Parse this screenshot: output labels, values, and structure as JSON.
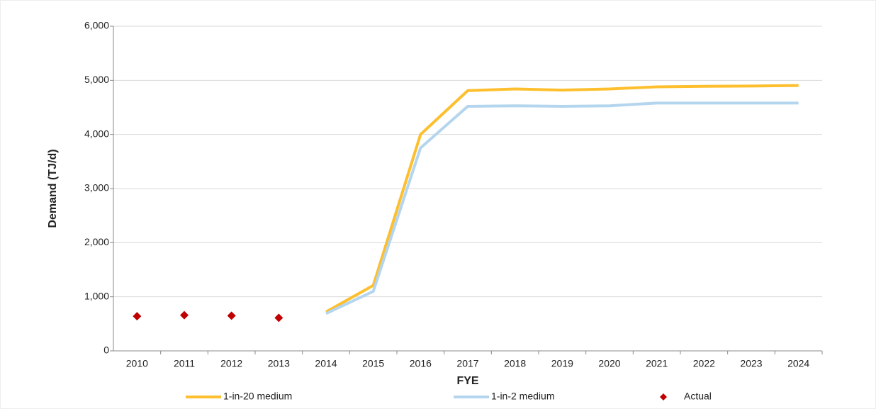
{
  "chart_data": {
    "type": "line",
    "x_label": "FYE",
    "y_label": "Demand (TJ/d)",
    "categories": [
      "2010",
      "2011",
      "2012",
      "2013",
      "2014",
      "2015",
      "2016",
      "2017",
      "2018",
      "2019",
      "2020",
      "2021",
      "2022",
      "2023",
      "2024"
    ],
    "series": [
      {
        "name": "1-in-20 medium",
        "color": "#fdbf2d",
        "mark": "line",
        "values": [
          null,
          null,
          null,
          null,
          720,
          1210,
          4000,
          4810,
          4840,
          4820,
          4840,
          4880,
          4890,
          4895,
          4905
        ]
      },
      {
        "name": "1-in-2 medium",
        "color": "#b4d5ee",
        "mark": "line",
        "values": [
          null,
          null,
          null,
          null,
          690,
          1100,
          3750,
          4520,
          4530,
          4520,
          4530,
          4580,
          4580,
          4580,
          4580
        ]
      },
      {
        "name": "Actual",
        "color": "#c00000",
        "mark": "diamond",
        "values": [
          640,
          660,
          650,
          610,
          null,
          null,
          null,
          null,
          null,
          null,
          null,
          null,
          null,
          null,
          null
        ]
      }
    ],
    "ylim": [
      0,
      6000
    ],
    "yticks": [
      0,
      {
        "value": 1000,
        "label": "1,000"
      },
      {
        "value": 2000,
        "label": "2,000"
      },
      {
        "value": 3000,
        "label": "3,000"
      },
      {
        "value": 4000,
        "label": "4,000"
      },
      {
        "value": 5000,
        "label": "5,000"
      },
      {
        "value": 6000,
        "label": "6,000"
      }
    ],
    "grid": true,
    "legend": "bottom"
  }
}
